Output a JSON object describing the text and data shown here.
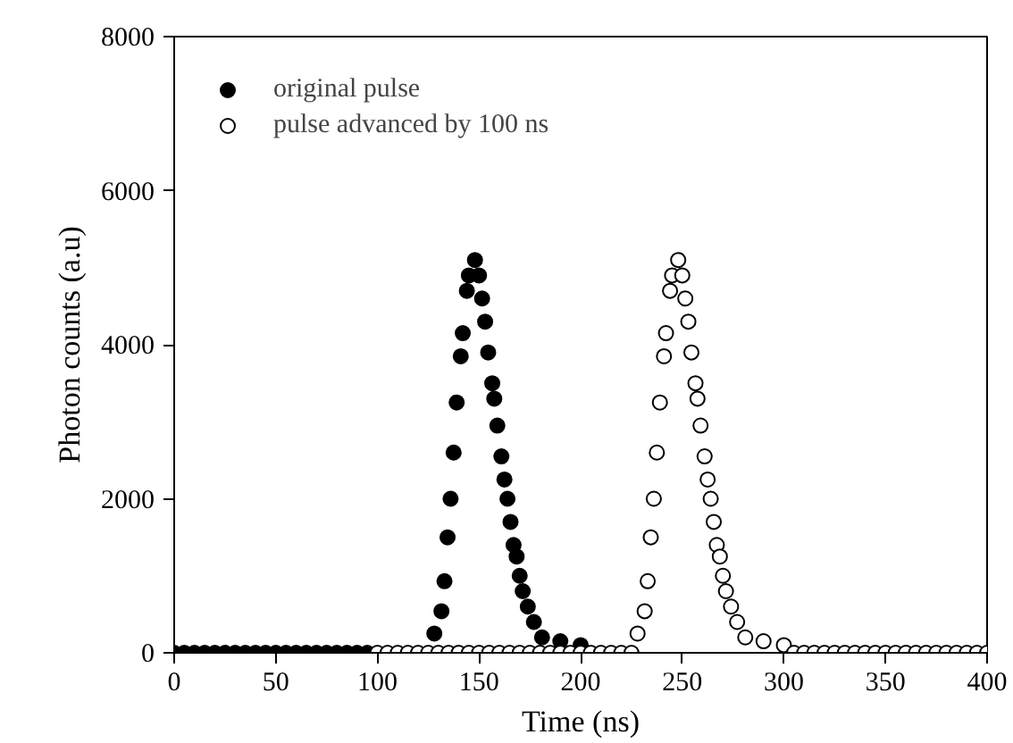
{
  "chart_data": {
    "type": "scatter",
    "xlabel": "Time (ns)",
    "ylabel": "Photon counts (a.u)",
    "xlim": [
      0,
      400
    ],
    "ylim": [
      0,
      8000
    ],
    "xticks": [
      0,
      50,
      100,
      150,
      200,
      250,
      300,
      350,
      400
    ],
    "yticks": [
      0,
      2000,
      4000,
      6000,
      8000
    ],
    "grid": false,
    "legend": "top left",
    "marker": "circle",
    "series": [
      {
        "name": "original pulse",
        "color": "#000000",
        "x": [
          0,
          5,
          10,
          15,
          20,
          25,
          30,
          35,
          40,
          45,
          50,
          55,
          60,
          65,
          70,
          75,
          80,
          85,
          90,
          95,
          128,
          131.5,
          133,
          134.5,
          136,
          137.5,
          139,
          141,
          142,
          144,
          145,
          148,
          150,
          151.5,
          153,
          154.5,
          156.5,
          157.5,
          159,
          161,
          162.5,
          164,
          165.5,
          167,
          168.5,
          170,
          171.5,
          174,
          177,
          181,
          190,
          200
        ],
        "values": [
          0,
          0,
          0,
          0,
          0,
          0,
          0,
          0,
          0,
          0,
          0,
          0,
          0,
          0,
          0,
          0,
          0,
          0,
          0,
          0,
          250,
          540,
          930,
          1500,
          2000,
          2600,
          3250,
          3850,
          4150,
          4700,
          4900,
          5100,
          4900,
          4600,
          4300,
          3900,
          3500,
          3300,
          2950,
          2550,
          2250,
          2000,
          1700,
          1400,
          1250,
          1000,
          800,
          600,
          400,
          200,
          150,
          100
        ]
      },
      {
        "name": "pulse advanced by 100 ns",
        "color": "#ffffff",
        "x": [
          100,
          105,
          110,
          115,
          120,
          125,
          130,
          135,
          140,
          145,
          150,
          155,
          160,
          165,
          170,
          175,
          180,
          185,
          190,
          195,
          200,
          205,
          210,
          215,
          220,
          225,
          228,
          231.5,
          233,
          234.5,
          236,
          237.5,
          239,
          241,
          242,
          244,
          245,
          248,
          250,
          251.5,
          253,
          254.5,
          256.5,
          257.5,
          259,
          261,
          262.5,
          264,
          265.5,
          267,
          268.5,
          270,
          271.5,
          274,
          277,
          281,
          290,
          300,
          305,
          310,
          315,
          320,
          325,
          330,
          335,
          340,
          345,
          350,
          355,
          360,
          365,
          370,
          375,
          380,
          385,
          390,
          395,
          400
        ],
        "values": [
          0,
          0,
          0,
          0,
          0,
          0,
          0,
          0,
          0,
          0,
          0,
          0,
          0,
          0,
          0,
          0,
          0,
          0,
          0,
          0,
          0,
          0,
          0,
          0,
          0,
          0,
          250,
          540,
          930,
          1500,
          2000,
          2600,
          3250,
          3850,
          4150,
          4700,
          4900,
          5100,
          4900,
          4600,
          4300,
          3900,
          3500,
          3300,
          2950,
          2550,
          2250,
          2000,
          1700,
          1400,
          1250,
          1000,
          800,
          600,
          400,
          200,
          150,
          100,
          0,
          0,
          0,
          0,
          0,
          0,
          0,
          0,
          0,
          0,
          0,
          0,
          0,
          0,
          0,
          0,
          0,
          0,
          0,
          0
        ]
      }
    ]
  }
}
